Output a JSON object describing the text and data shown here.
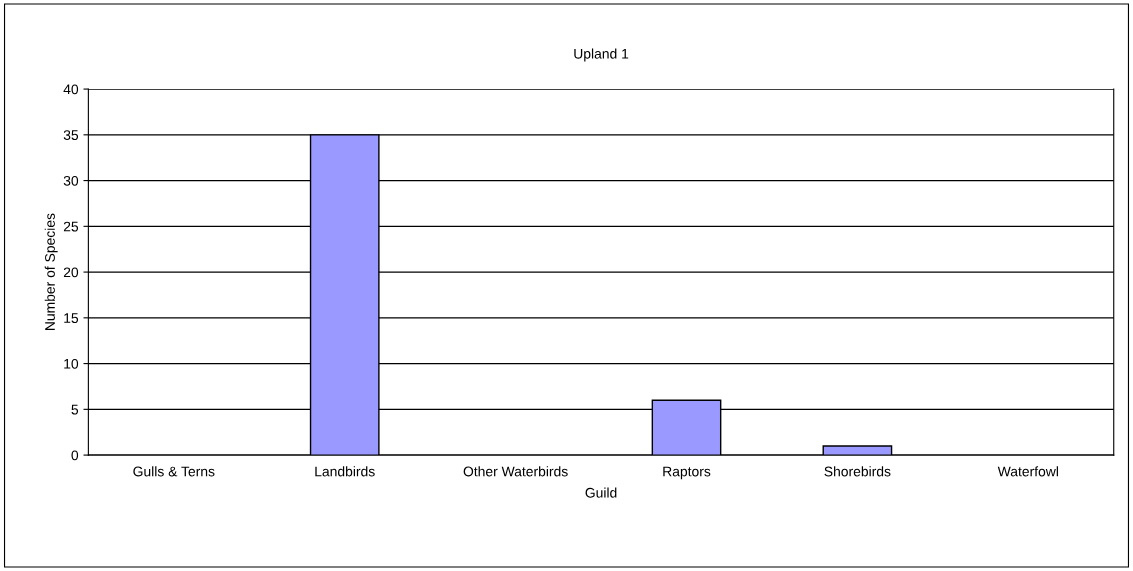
{
  "chart_data": {
    "type": "bar",
    "title": "Upland 1",
    "xlabel": "Guild",
    "ylabel": "Number of Species",
    "categories": [
      "Gulls & Terns",
      "Landbirds",
      "Other Waterbirds",
      "Raptors",
      "Shorebirds",
      "Waterfowl"
    ],
    "values": [
      0,
      35,
      0,
      6,
      1,
      0
    ],
    "color": "#9999ff",
    "ylim": [
      0,
      40
    ],
    "yticks": [
      0,
      5,
      10,
      15,
      20,
      25,
      30,
      35,
      40
    ],
    "grid": "y",
    "legend": false
  }
}
